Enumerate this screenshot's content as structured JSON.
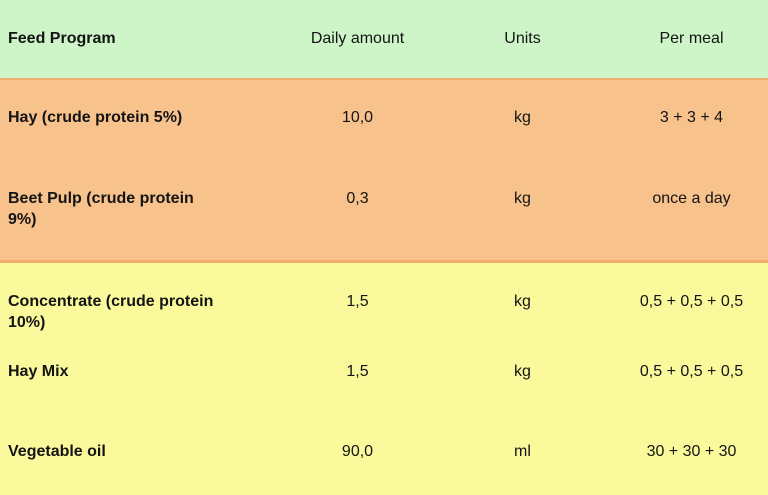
{
  "table": {
    "headers": [
      "Feed Program",
      "Daily amount",
      "Units",
      "Per meal"
    ],
    "rows": [
      {
        "feed": "Hay (crude protein 5%)",
        "daily_amount": "10,0",
        "units": "kg",
        "per_meal": "3 + 3 + 4"
      },
      {
        "feed": "Beet Pulp (crude protein 9%)",
        "daily_amount": "0,3",
        "units": "kg",
        "per_meal": "once a day"
      },
      {
        "feed": "Concentrate (crude protein 10%)",
        "daily_amount": "1,5",
        "units": "kg",
        "per_meal": "0,5 + 0,5 + 0,5"
      },
      {
        "feed": "Hay Mix",
        "daily_amount": "1,5",
        "units": "kg",
        "per_meal": "0,5 + 0,5 + 0,5"
      },
      {
        "feed": "Vegetable oil",
        "daily_amount": "90,0",
        "units": "ml",
        "per_meal": "30 + 30 + 30"
      }
    ]
  },
  "colors": {
    "header_bg": "#cdf5c7",
    "roughage_bg": "#f8c28d",
    "concentrate_bg": "#faf99c",
    "section_divider": "#f0ad6e",
    "text": "#141414"
  }
}
